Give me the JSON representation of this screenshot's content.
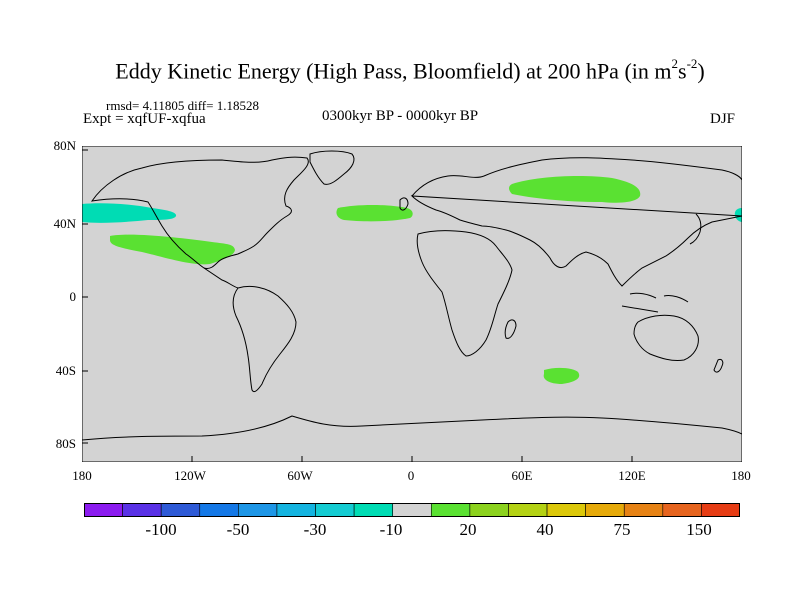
{
  "title": {
    "main": "Eddy Kinetic Energy (High Pass, Bloomfield) at 200 hPa (in m",
    "sup1": "2",
    "mid": "s",
    "sup2": "-2",
    "end": ")"
  },
  "stats": "rmsd= 4.11805 diff= 1.18528",
  "experiment": "Expt = xqfUF-xqfua",
  "period": "0300kyr BP - 0000kyr BP",
  "season": "DJF",
  "axes": {
    "y_ticks": [
      "80N",
      "40N",
      "0",
      "40S",
      "80S"
    ],
    "x_ticks": [
      "180",
      "120W",
      "60W",
      "0",
      "60E",
      "120E",
      "180"
    ]
  },
  "colorbar": {
    "colors": [
      "#8c1cf0",
      "#5a32e6",
      "#2e5ad6",
      "#1478e6",
      "#1e96e6",
      "#14b4e0",
      "#14ccd2",
      "#00dcb4",
      "#d3d3d3",
      "#5ae132",
      "#8cd21e",
      "#b4d214",
      "#dcc80a",
      "#e6aa0a",
      "#e68214",
      "#e6641e",
      "#e63c14"
    ],
    "labels": [
      "-100",
      "-50",
      "-30",
      "-10",
      "20",
      "40",
      "75",
      "150"
    ]
  },
  "map_colors": {
    "ocean_background": "#d3d3d3",
    "positive_anomaly": "#5ae132",
    "negative_anomaly": "#00dcb4"
  }
}
